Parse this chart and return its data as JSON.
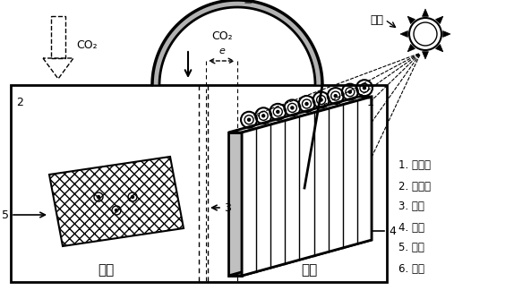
{
  "fig_width": 5.93,
  "fig_height": 3.34,
  "bg_color": "#ffffff",
  "legend_items": [
    "1. 阳极室",
    "2. 阴极室",
    "3. 隔膜",
    "4. 阳极",
    "5. 阴极",
    "6. 挡板"
  ]
}
